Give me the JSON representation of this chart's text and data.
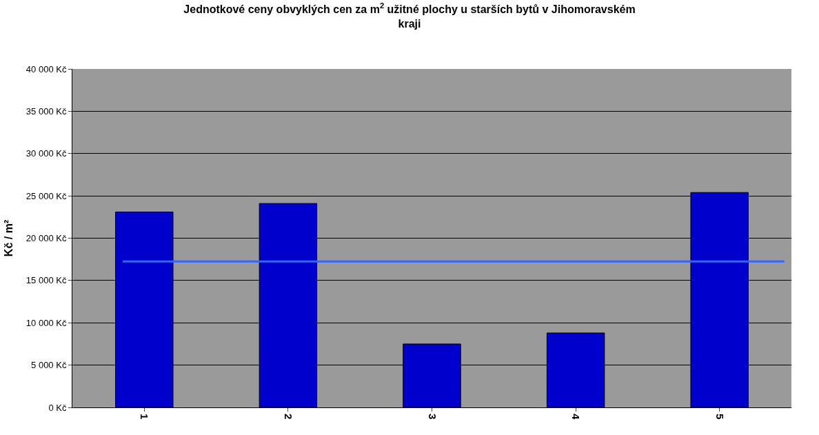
{
  "chart_data": {
    "type": "bar",
    "title": "Jednotkové ceny obvyklých cen za m$^{2}$ užitné plochy u starších bytů v Jihomoravském kraji",
    "ylabel": "Kč / m²",
    "categories": [
      "1",
      "2",
      "3",
      "4",
      "5"
    ],
    "values": [
      23100,
      24100,
      7500,
      8800,
      25400
    ],
    "color": "#0000cc",
    "ylim": [
      0,
      40000
    ],
    "yticks": [
      {
        "value": 0,
        "label": "0 Kč"
      },
      {
        "value": 5000,
        "label": "5 000 Kč"
      },
      {
        "value": 10000,
        "label": "10 000 Kč"
      },
      {
        "value": 15000,
        "label": "15 000 Kč"
      },
      {
        "value": 20000,
        "label": "20 000 Kč"
      },
      {
        "value": 25000,
        "label": "25 000 Kč"
      },
      {
        "value": 30000,
        "label": "30 000 Kč"
      },
      {
        "value": 35000,
        "label": "35 000 Kč"
      },
      {
        "value": 40000,
        "label": "40 000 Kč"
      }
    ],
    "ref_lines": [
      {
        "axis": "y",
        "value": 17250,
        "color": "#3366ff",
        "line_style": "solid"
      }
    ],
    "grid": "y"
  }
}
